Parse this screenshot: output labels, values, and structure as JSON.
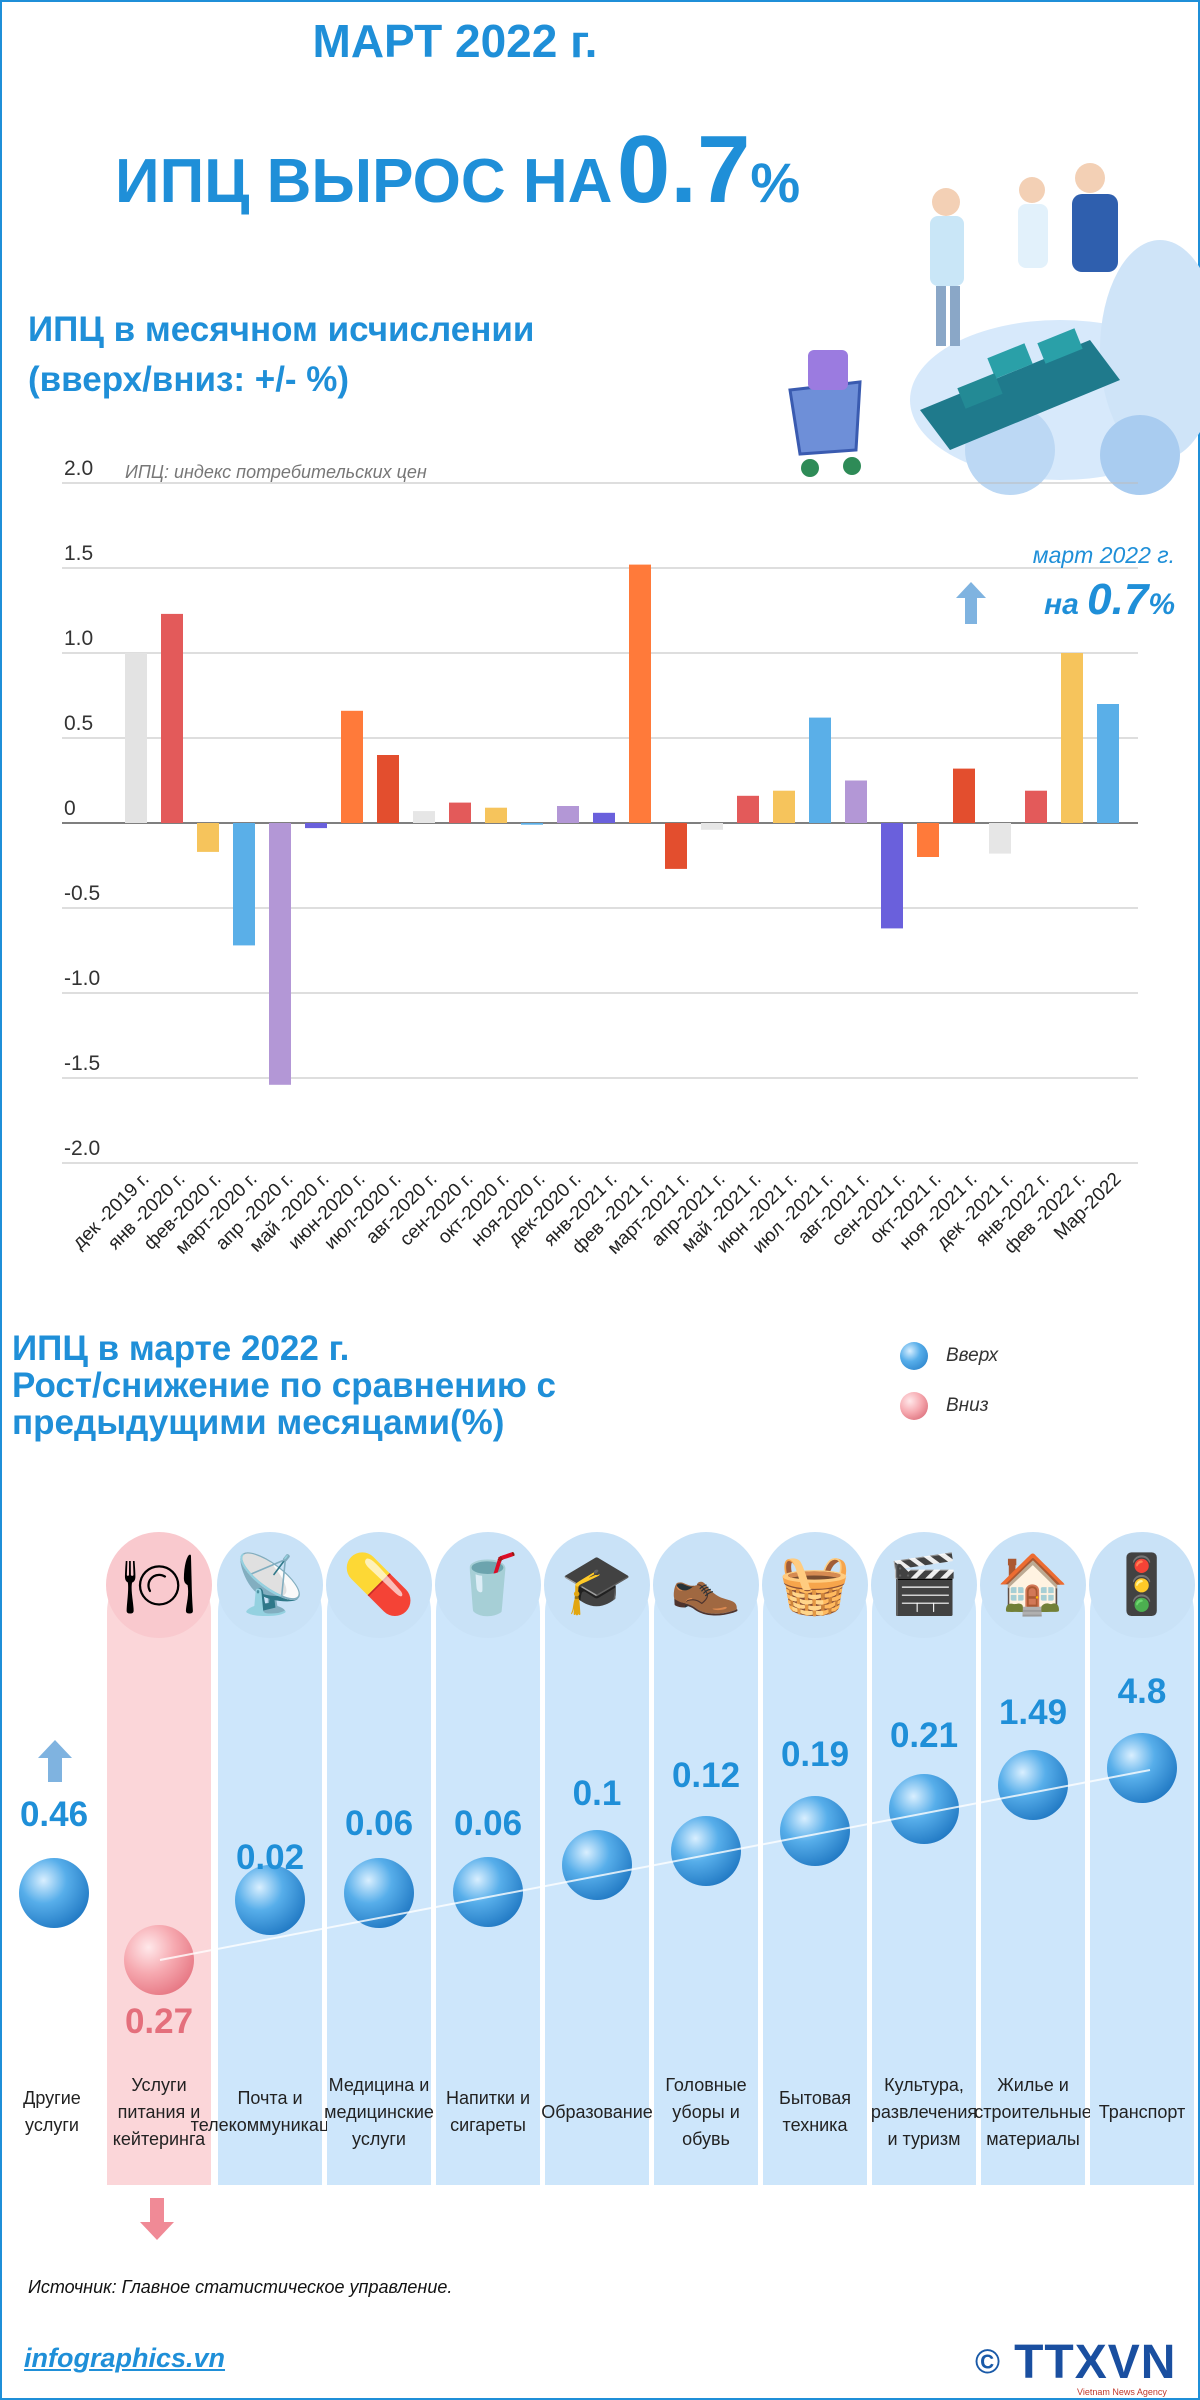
{
  "header": {
    "title": "МАРТ 2022 г.",
    "headline_prefix": "ИПЦ ВЫРОС НА",
    "headline_value": "0.7",
    "headline_unit": "%"
  },
  "chart_section": {
    "title_line1": "ИПЦ в месячном исчислении",
    "title_line2": "(вверх/вниз: +/- %)"
  },
  "callout": {
    "line1": "март 2022 г.",
    "line2_prefix": "на",
    "line2_value": "0.7",
    "line2_unit": "%"
  },
  "chart_data": {
    "type": "bar",
    "note": "ИПЦ: индекс потребительских цен",
    "ylim": [
      -2.0,
      2.0
    ],
    "y_ticks": [
      "2.0",
      "1.5",
      "1.0",
      "0.5",
      "0",
      "-0.5",
      "-1.0",
      "-1.5",
      "-2.0"
    ],
    "categories": [
      "дек -2019 г.",
      "янв -2020 г.",
      "фев-2020 г.",
      "март-2020 г.",
      "апр -2020 г.",
      "май -2020 г.",
      "июн-2020 г.",
      "июл-2020 г.",
      "авг-2020 г.",
      "сен-2020 г.",
      "окт-2020 г.",
      "ноя-2020 г.",
      "дек-2020 г.",
      "янв-2021 г.",
      "фев -2021 г.",
      "март-2021 г.",
      "апр-2021 г.",
      "май -2021 г.",
      "июн -2021 г.",
      "июл -2021 г.",
      "авг-2021 г.",
      "сен-2021 г.",
      "окт-2021 г.",
      "ноя -2021 г.",
      "дек -2021 г.",
      "янв-2022 г.",
      "фев -2022 г.",
      "Мар-2022"
    ],
    "values": [
      1.0,
      1.23,
      -0.17,
      -0.72,
      -1.54,
      -0.03,
      0.66,
      0.4,
      0.07,
      0.12,
      0.09,
      -0.01,
      0.1,
      0.06,
      1.52,
      -0.27,
      -0.04,
      0.16,
      0.19,
      0.62,
      0.25,
      -0.62,
      -0.2,
      0.32,
      -0.18,
      0.19,
      1.0,
      0.7
    ],
    "colors": [
      "#e3e3e3",
      "#e35a5a",
      "#f6c45c",
      "#5aafe8",
      "#b397d6",
      "#6a60dc",
      "#ff7a3a",
      "#e34e2e",
      "#e6e6e6",
      "#e35a5a",
      "#f6c45c",
      "#5aafe8",
      "#b397d6",
      "#6a60dc",
      "#ff7a3a",
      "#e34e2e",
      "#e6e6e6",
      "#e35a5a",
      "#f6c45c",
      "#5aafe8",
      "#b397d6",
      "#6a60dc",
      "#ff7a3a",
      "#e34e2e",
      "#e6e6e6",
      "#e35a5a",
      "#f6c45c",
      "#5aafe8"
    ]
  },
  "groups_section": {
    "title_line1": "ИПЦ в марте 2022 г.",
    "title_line2": "Рост/снижение по сравнению с",
    "title_line3": "предыдущими месяцами(%)"
  },
  "legend": {
    "up": "Вверх",
    "down": "Вниз",
    "up_color": "#3d95dc",
    "down_color": "#f08a96"
  },
  "groups": [
    {
      "label": "Другие услуги",
      "value": "0.46",
      "direction": "up",
      "icon": ""
    },
    {
      "label": "Услуги питания и кейтеринга",
      "value": "0.27",
      "direction": "down",
      "icon": "food-icon"
    },
    {
      "label": "Почта и телекоммуникации",
      "value": "0.02",
      "direction": "up",
      "icon": "antenna-icon"
    },
    {
      "label": "Медицина и медицинские услуги",
      "value": "0.06",
      "direction": "up",
      "icon": "pill-icon"
    },
    {
      "label": "Напитки и сигареты",
      "value": "0.06",
      "direction": "up",
      "icon": "drink-icon"
    },
    {
      "label": "Образование",
      "value": "0.1",
      "direction": "up",
      "icon": "graduation-cap-icon"
    },
    {
      "label": "Головные уборы и обувь",
      "value": "0.12",
      "direction": "up",
      "icon": "shoes-icon"
    },
    {
      "label": "Бытовая техника",
      "value": "0.19",
      "direction": "up",
      "icon": "washing-machine-icon"
    },
    {
      "label": "Культура, развлечения и туризм",
      "value": "0.21",
      "direction": "up",
      "icon": "video-icon"
    },
    {
      "label": "Жилье и строительные материалы",
      "value": "1.49",
      "direction": "up",
      "icon": "house-icon"
    },
    {
      "label": "Транспорт",
      "value": "4.8",
      "direction": "up",
      "icon": "traffic-light-icon"
    }
  ],
  "footer": {
    "source": "Источник: Главное статистическое управление.",
    "site": "infographics.vn",
    "copyright": "©",
    "agency": "TTXVN",
    "agency_sub": "Vietnam News Agency"
  }
}
